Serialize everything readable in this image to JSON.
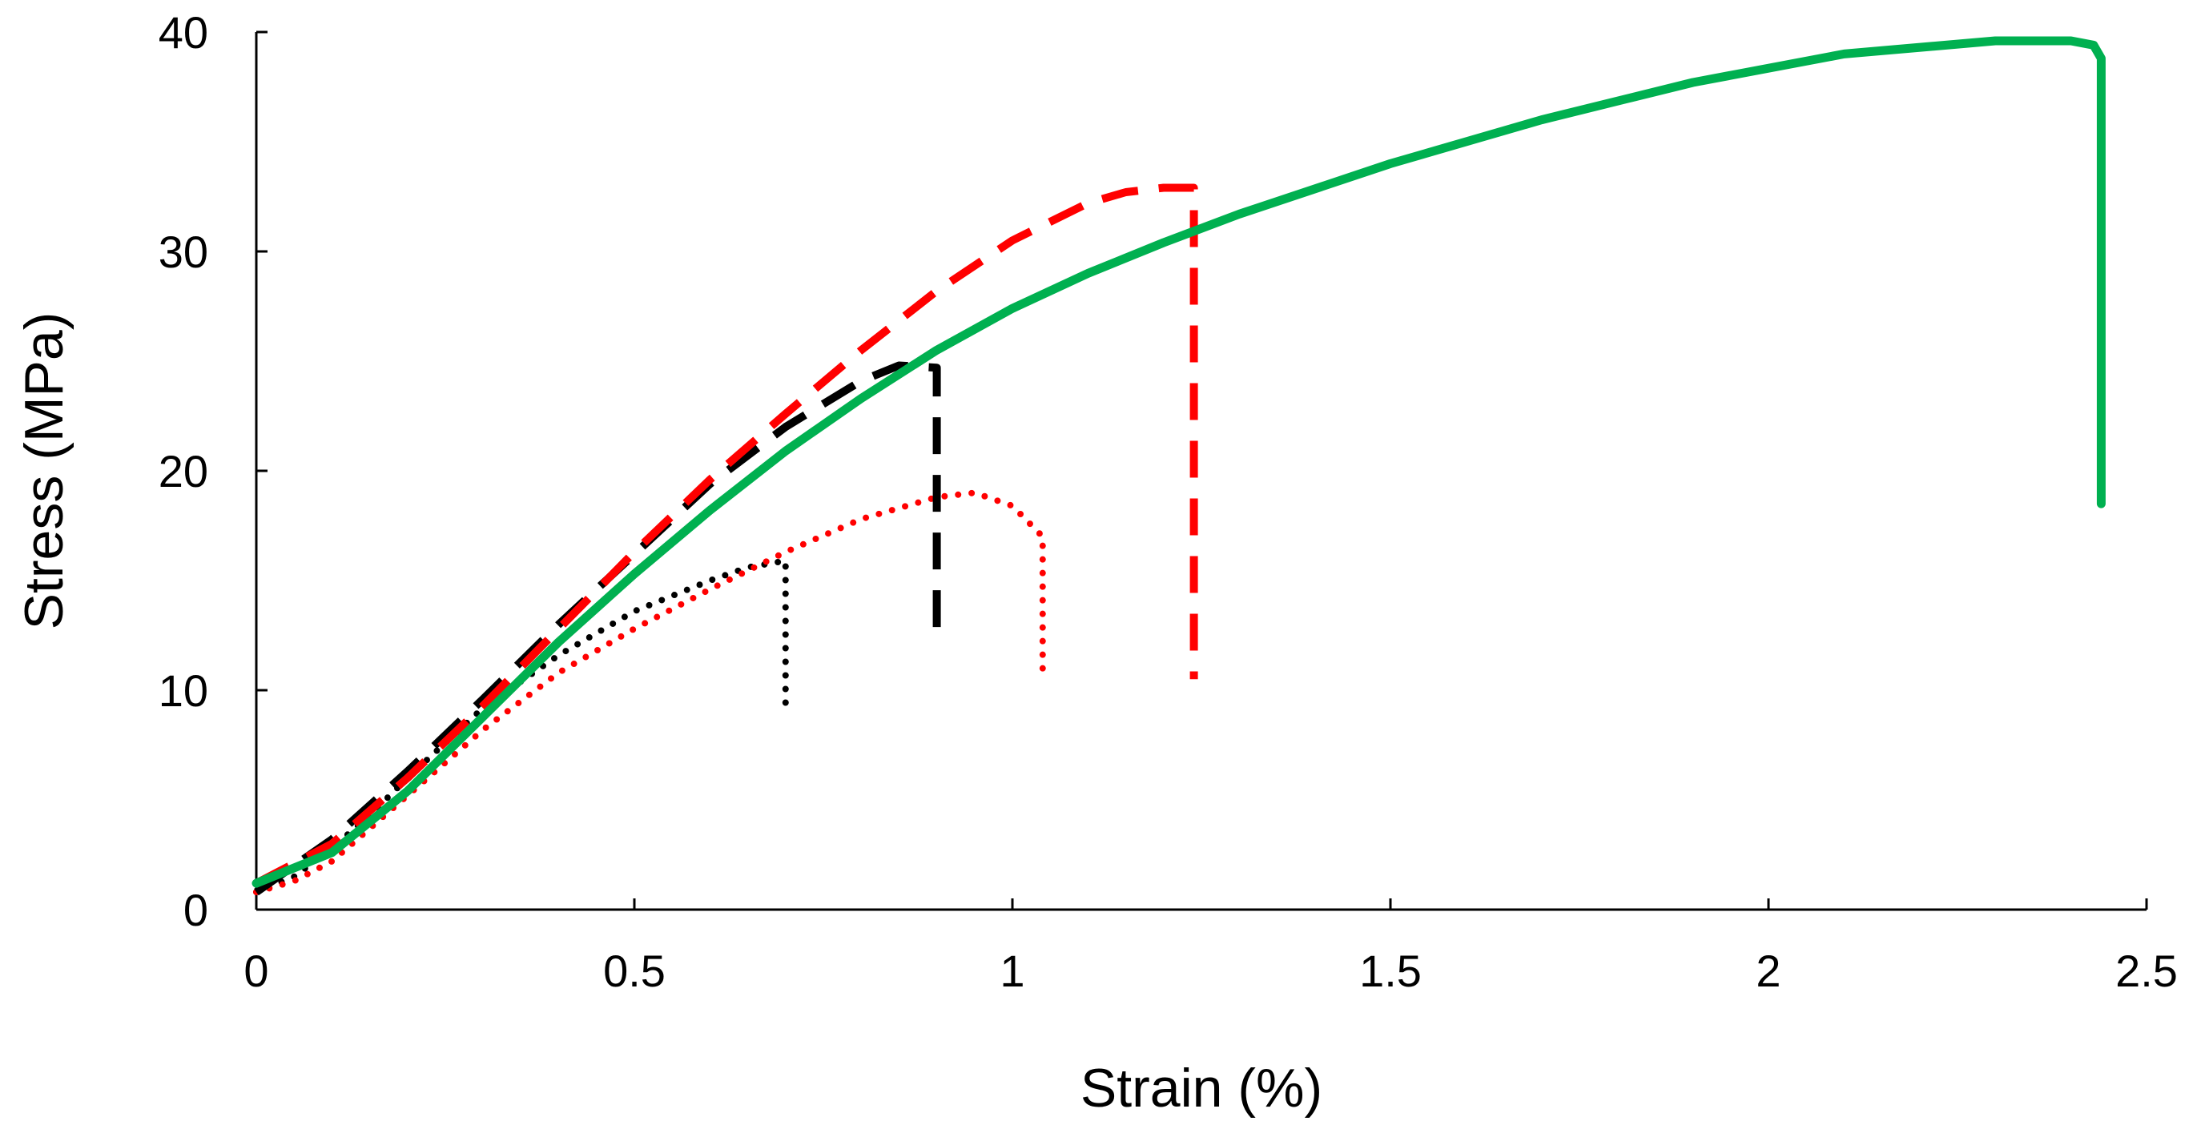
{
  "chart_data": {
    "type": "line",
    "title": "",
    "xlabel": "Strain (%)",
    "ylabel": "Stress (MPa)",
    "xlim": [
      0,
      2.5
    ],
    "ylim": [
      0,
      40
    ],
    "xticks": [
      0,
      0.5,
      1,
      1.5,
      2,
      2.5
    ],
    "xtick_labels": [
      "0",
      "0.5",
      "1",
      "1.5",
      "2",
      "2.5"
    ],
    "yticks": [
      0,
      10,
      20,
      30,
      40
    ],
    "ytick_labels": [
      "0",
      "10",
      "20",
      "30",
      "40"
    ],
    "grid": false,
    "legend": null,
    "series": [
      {
        "name": "black-dotted",
        "color": "#000000",
        "style": "dotted",
        "x": [
          0,
          0.05,
          0.1,
          0.15,
          0.2,
          0.3,
          0.4,
          0.5,
          0.6,
          0.65,
          0.7,
          0.7
        ],
        "y": [
          0.8,
          1.5,
          2.8,
          4.3,
          6.0,
          9.2,
          11.6,
          13.6,
          15.0,
          15.6,
          15.9,
          9.2
        ]
      },
      {
        "name": "red-dotted",
        "color": "#ff0000",
        "style": "dotted",
        "x": [
          0,
          0.05,
          0.1,
          0.2,
          0.3,
          0.4,
          0.5,
          0.6,
          0.7,
          0.8,
          0.9,
          0.95,
          1.0,
          1.04,
          1.04
        ],
        "y": [
          0.8,
          1.3,
          2.2,
          5.2,
          8.2,
          10.8,
          12.8,
          14.6,
          16.3,
          17.8,
          18.8,
          19.0,
          18.4,
          17.0,
          10.8
        ]
      },
      {
        "name": "black-dashed",
        "color": "#000000",
        "style": "dashed",
        "x": [
          0,
          0.1,
          0.2,
          0.3,
          0.4,
          0.5,
          0.6,
          0.7,
          0.8,
          0.85,
          0.9,
          0.9
        ],
        "y": [
          0.8,
          3.2,
          6.3,
          9.6,
          13.0,
          16.2,
          19.4,
          22.0,
          24.1,
          24.8,
          24.7,
          12.8
        ]
      },
      {
        "name": "red-dashed",
        "color": "#ff0000",
        "style": "dashed",
        "x": [
          0,
          0.1,
          0.2,
          0.3,
          0.4,
          0.5,
          0.6,
          0.7,
          0.8,
          0.9,
          1.0,
          1.1,
          1.15,
          1.2,
          1.24,
          1.24
        ],
        "y": [
          1.2,
          3.0,
          6.0,
          9.3,
          12.8,
          16.3,
          19.6,
          22.6,
          25.5,
          28.2,
          30.5,
          32.2,
          32.7,
          32.9,
          32.9,
          10.5
        ]
      },
      {
        "name": "green-solid",
        "color": "#00b050",
        "style": "solid",
        "x": [
          0,
          0.1,
          0.2,
          0.3,
          0.4,
          0.5,
          0.6,
          0.7,
          0.8,
          0.9,
          1.0,
          1.1,
          1.2,
          1.3,
          1.5,
          1.7,
          1.9,
          2.1,
          2.3,
          2.4,
          2.43,
          2.44,
          2.44
        ],
        "y": [
          1.2,
          2.6,
          5.4,
          8.8,
          12.2,
          15.3,
          18.2,
          20.9,
          23.3,
          25.5,
          27.4,
          29.0,
          30.4,
          31.7,
          34.0,
          36.0,
          37.7,
          39.0,
          39.6,
          39.6,
          39.4,
          38.8,
          18.5
        ]
      }
    ]
  }
}
